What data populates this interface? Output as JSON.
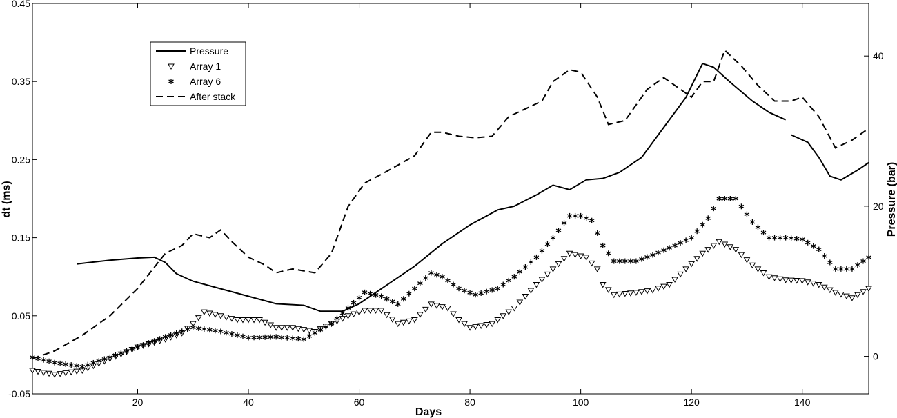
{
  "chart_data": {
    "type": "line",
    "xlabel": "Days",
    "ylabel_left": "dt (ms)",
    "ylabel_right": "Pressure (bar)",
    "xlim": [
      1,
      152
    ],
    "ylim_left": [
      -0.05,
      0.45
    ],
    "ylim_right": [
      -5,
      47
    ],
    "x_ticks": [
      20,
      40,
      60,
      80,
      100,
      120,
      140
    ],
    "y_ticks_left": [
      -0.05,
      0.05,
      0.15,
      0.25,
      0.35,
      0.45
    ],
    "y_ticks_right": [
      0,
      20,
      40
    ],
    "legend_position": "top-left",
    "series": [
      {
        "name": "Pressure",
        "axis": "right",
        "style": "solid",
        "segments": [
          [
            [
              9,
              12.3
            ],
            [
              15,
              12.8
            ],
            [
              20,
              13.1
            ],
            [
              23,
              13.2
            ],
            [
              25,
              12.5
            ],
            [
              27,
              11.0
            ],
            [
              30,
              10.0
            ],
            [
              35,
              9.0
            ],
            [
              40,
              8.0
            ],
            [
              45,
              7.0
            ],
            [
              50,
              6.8
            ],
            [
              53,
              6.0
            ],
            [
              57,
              6.0
            ],
            [
              60,
              7.0
            ],
            [
              65,
              9.5
            ],
            [
              70,
              12.0
            ],
            [
              75,
              15.0
            ],
            [
              80,
              17.5
            ],
            [
              85,
              19.5
            ],
            [
              88,
              20.0
            ],
            [
              92,
              21.5
            ],
            [
              95,
              22.8
            ],
            [
              98,
              22.2
            ],
            [
              101,
              23.5
            ],
            [
              104,
              23.7
            ],
            [
              107,
              24.5
            ],
            [
              111,
              26.5
            ],
            [
              115,
              30.5
            ],
            [
              119,
              34.5
            ],
            [
              122,
              39.0
            ],
            [
              124,
              38.5
            ],
            [
              127,
              36.5
            ],
            [
              131,
              34.0
            ],
            [
              134,
              32.5
            ],
            [
              137,
              31.5
            ]
          ],
          [
            [
              138,
              29.5
            ],
            [
              141,
              28.5
            ],
            [
              143,
              26.5
            ],
            [
              145,
              24.0
            ],
            [
              147,
              23.5
            ],
            [
              150,
              24.8
            ],
            [
              152,
              25.8
            ]
          ]
        ]
      },
      {
        "name": "Array 1",
        "axis": "left",
        "style": "triangle",
        "points": [
          [
            1,
            -0.02
          ],
          [
            5,
            -0.025
          ],
          [
            10,
            -0.02
          ],
          [
            15,
            -0.005
          ],
          [
            20,
            0.01
          ],
          [
            25,
            0.02
          ],
          [
            28,
            0.028
          ],
          [
            30,
            0.04
          ],
          [
            32,
            0.055
          ],
          [
            35,
            0.05
          ],
          [
            38,
            0.045
          ],
          [
            42,
            0.045
          ],
          [
            45,
            0.035
          ],
          [
            48,
            0.035
          ],
          [
            52,
            0.03
          ],
          [
            55,
            0.04
          ],
          [
            58,
            0.05
          ],
          [
            61,
            0.057
          ],
          [
            64,
            0.057
          ],
          [
            67,
            0.04
          ],
          [
            70,
            0.045
          ],
          [
            73,
            0.065
          ],
          [
            76,
            0.06
          ],
          [
            78,
            0.045
          ],
          [
            80,
            0.035
          ],
          [
            84,
            0.04
          ],
          [
            88,
            0.06
          ],
          [
            92,
            0.09
          ],
          [
            95,
            0.11
          ],
          [
            98,
            0.13
          ],
          [
            101,
            0.125
          ],
          [
            103,
            0.11
          ],
          [
            104,
            0.09
          ],
          [
            106,
            0.077
          ],
          [
            110,
            0.08
          ],
          [
            113,
            0.083
          ],
          [
            116,
            0.09
          ],
          [
            119,
            0.11
          ],
          [
            122,
            0.13
          ],
          [
            125,
            0.145
          ],
          [
            128,
            0.135
          ],
          [
            131,
            0.115
          ],
          [
            134,
            0.1
          ],
          [
            137,
            0.096
          ],
          [
            140,
            0.095
          ],
          [
            143,
            0.09
          ],
          [
            146,
            0.08
          ],
          [
            149,
            0.073
          ],
          [
            152,
            0.085
          ]
        ]
      },
      {
        "name": "Array 6",
        "axis": "left",
        "style": "star",
        "points": [
          [
            1,
            -0.003
          ],
          [
            5,
            -0.01
          ],
          [
            10,
            -0.015
          ],
          [
            15,
            -0.003
          ],
          [
            20,
            0.01
          ],
          [
            25,
            0.023
          ],
          [
            30,
            0.035
          ],
          [
            35,
            0.03
          ],
          [
            40,
            0.022
          ],
          [
            45,
            0.023
          ],
          [
            50,
            0.02
          ],
          [
            55,
            0.04
          ],
          [
            58,
            0.06
          ],
          [
            61,
            0.08
          ],
          [
            64,
            0.075
          ],
          [
            67,
            0.065
          ],
          [
            70,
            0.085
          ],
          [
            73,
            0.105
          ],
          [
            75,
            0.1
          ],
          [
            78,
            0.085
          ],
          [
            81,
            0.077
          ],
          [
            85,
            0.085
          ],
          [
            88,
            0.1
          ],
          [
            92,
            0.125
          ],
          [
            95,
            0.15
          ],
          [
            98,
            0.178
          ],
          [
            100,
            0.178
          ],
          [
            102,
            0.172
          ],
          [
            104,
            0.14
          ],
          [
            106,
            0.12
          ],
          [
            110,
            0.12
          ],
          [
            113,
            0.128
          ],
          [
            117,
            0.14
          ],
          [
            120,
            0.15
          ],
          [
            123,
            0.175
          ],
          [
            125,
            0.2
          ],
          [
            128,
            0.2
          ],
          [
            131,
            0.17
          ],
          [
            134,
            0.15
          ],
          [
            137,
            0.15
          ],
          [
            140,
            0.148
          ],
          [
            143,
            0.135
          ],
          [
            146,
            0.11
          ],
          [
            149,
            0.11
          ],
          [
            152,
            0.125
          ]
        ]
      },
      {
        "name": "After stack",
        "axis": "left",
        "style": "dashed",
        "points": [
          [
            1,
            -0.005
          ],
          [
            5,
            0.005
          ],
          [
            10,
            0.025
          ],
          [
            15,
            0.05
          ],
          [
            20,
            0.085
          ],
          [
            25,
            0.13
          ],
          [
            28,
            0.14
          ],
          [
            30,
            0.155
          ],
          [
            33,
            0.15
          ],
          [
            35,
            0.16
          ],
          [
            37,
            0.145
          ],
          [
            40,
            0.125
          ],
          [
            43,
            0.115
          ],
          [
            45,
            0.105
          ],
          [
            48,
            0.11
          ],
          [
            52,
            0.105
          ],
          [
            55,
            0.13
          ],
          [
            58,
            0.19
          ],
          [
            61,
            0.22
          ],
          [
            65,
            0.235
          ],
          [
            70,
            0.255
          ],
          [
            73,
            0.285
          ],
          [
            75,
            0.285
          ],
          [
            78,
            0.28
          ],
          [
            81,
            0.278
          ],
          [
            84,
            0.28
          ],
          [
            87,
            0.305
          ],
          [
            90,
            0.315
          ],
          [
            93,
            0.325
          ],
          [
            95,
            0.35
          ],
          [
            98,
            0.365
          ],
          [
            100,
            0.362
          ],
          [
            103,
            0.33
          ],
          [
            105,
            0.295
          ],
          [
            108,
            0.3
          ],
          [
            112,
            0.34
          ],
          [
            115,
            0.355
          ],
          [
            118,
            0.34
          ],
          [
            120,
            0.33
          ],
          [
            122,
            0.35
          ],
          [
            124,
            0.35
          ],
          [
            126,
            0.39
          ],
          [
            129,
            0.37
          ],
          [
            132,
            0.345
          ],
          [
            135,
            0.325
          ],
          [
            138,
            0.325
          ],
          [
            140,
            0.33
          ],
          [
            143,
            0.305
          ],
          [
            146,
            0.265
          ],
          [
            149,
            0.275
          ],
          [
            152,
            0.29
          ]
        ]
      }
    ]
  }
}
